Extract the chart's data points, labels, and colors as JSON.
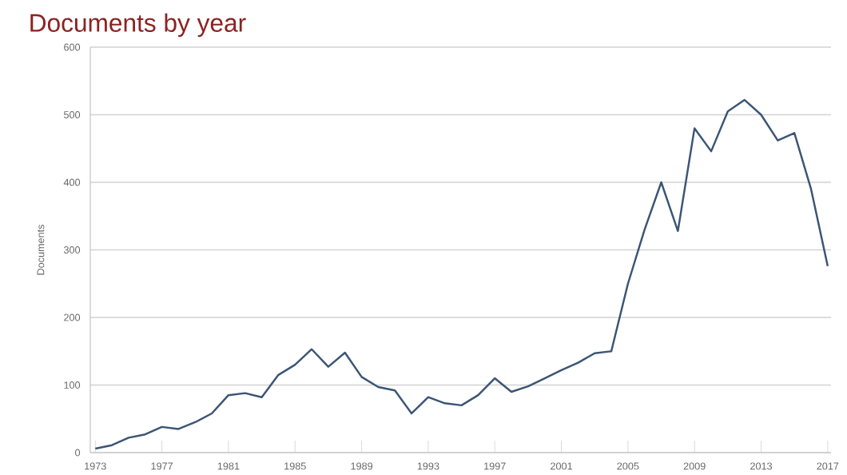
{
  "chart_data": {
    "type": "line",
    "title": "Documents by year",
    "ylabel": "Documents",
    "x": [
      1973,
      1974,
      1975,
      1976,
      1977,
      1978,
      1979,
      1980,
      1981,
      1982,
      1983,
      1984,
      1985,
      1986,
      1987,
      1988,
      1989,
      1990,
      1991,
      1992,
      1993,
      1994,
      1995,
      1996,
      1997,
      1998,
      1999,
      2000,
      2001,
      2002,
      2003,
      2004,
      2005,
      2006,
      2007,
      2008,
      2009,
      2010,
      2011,
      2012,
      2013,
      2014,
      2015,
      2016,
      2017
    ],
    "series": [
      {
        "color": "#3b5575",
        "values": [
          6,
          11,
          22,
          27,
          38,
          35,
          45,
          58,
          85,
          88,
          82,
          115,
          130,
          153,
          127,
          148,
          112,
          97,
          92,
          58,
          82,
          73,
          70,
          85,
          110,
          90,
          98,
          110,
          122,
          133,
          147,
          150,
          250,
          330,
          400,
          328,
          480,
          446,
          505,
          522,
          500,
          462,
          473,
          390,
          276
        ]
      }
    ],
    "xlim": [
      1972.7,
      2017.2
    ],
    "ylim": [
      0,
      600
    ],
    "xticks": [
      1973,
      1977,
      1981,
      1985,
      1989,
      1993,
      1997,
      2001,
      2005,
      2009,
      2013,
      2017
    ],
    "yticks": [
      0,
      100,
      200,
      300,
      400,
      500,
      600
    ],
    "grid": "y",
    "marker": "none",
    "line_style": "solid"
  }
}
